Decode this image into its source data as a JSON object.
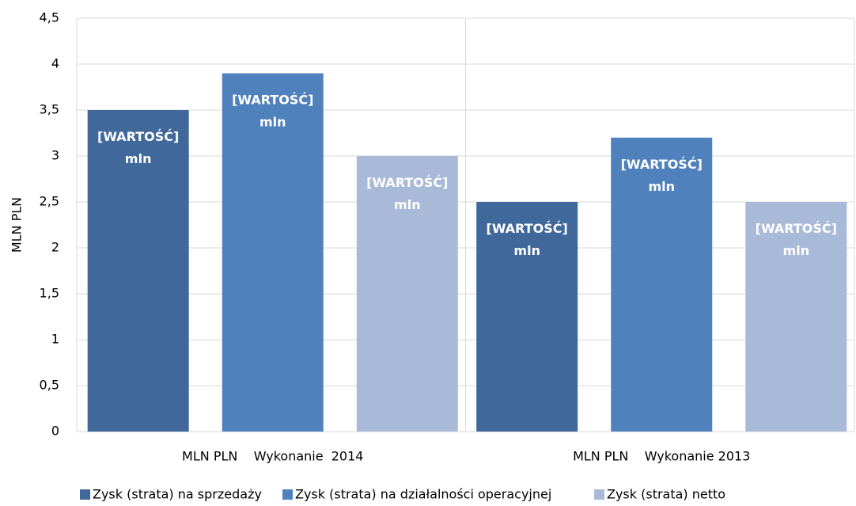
{
  "chart_data": {
    "type": "bar",
    "ylabel": "MLN PLN",
    "categories": [
      "MLN PLN    Wykonanie  2014",
      "MLN PLN    Wykonanie 2013"
    ],
    "series": [
      {
        "name": "Zysk (strata) na sprzedaży",
        "color": "#41689a",
        "values": [
          3.5,
          2.5
        ],
        "value_labels": [
          "[WARTOŚĆ] mln",
          "[WARTOŚĆ] mln"
        ]
      },
      {
        "name": "Zysk (strata) na działalności operacyjnej",
        "color": "#4f81bd",
        "values": [
          3.9,
          3.2
        ],
        "value_labels": [
          "[WARTOŚĆ] mln",
          "[WARTOŚĆ] mln"
        ]
      },
      {
        "name": "Zysk (strata) netto",
        "color": "#a9b9d8",
        "values": [
          3.0,
          2.5
        ],
        "value_labels": [
          "[WARTOŚĆ] mln",
          "[WARTOŚĆ] mln"
        ]
      }
    ],
    "ylim": [
      0,
      4.5
    ],
    "yticks": [
      0,
      {
        "value": 0.5,
        "label": "0,5"
      },
      1,
      {
        "value": 1.5,
        "label": "1,5"
      },
      2,
      {
        "value": 2.5,
        "label": "2,5"
      },
      3,
      {
        "value": 3.5,
        "label": "3,5"
      },
      4,
      {
        "value": 4.5,
        "label": "4,5"
      }
    ],
    "grid": true,
    "legend": "bottom"
  }
}
